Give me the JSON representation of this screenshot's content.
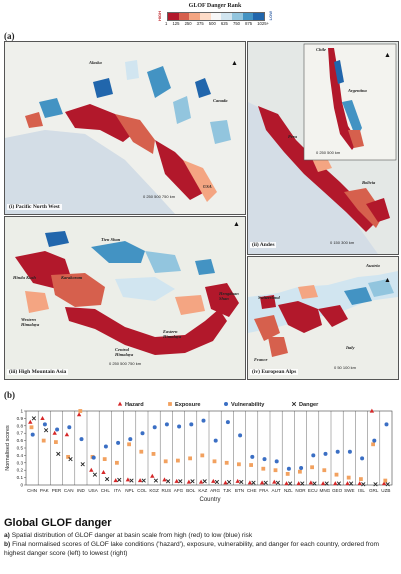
{
  "figure": {
    "panel_a": "(a)",
    "panel_b": "(b)"
  },
  "legend": {
    "title": "GLOF Danger Rank",
    "high": "HIGH",
    "low": "LOW",
    "ticks": [
      "1",
      "125",
      "250",
      "375",
      "500",
      "625",
      "750",
      "875",
      "1025+"
    ],
    "colors": [
      "#b2182b",
      "#d6604d",
      "#f4a582",
      "#fddbc7",
      "#f7f7f7",
      "#d1e5f0",
      "#92c5de",
      "#4393c3",
      "#2166ac"
    ]
  },
  "maps": {
    "pnw": {
      "caption": "(i) Pacific North West",
      "labels": {
        "alaska": "Alaska",
        "canada": "Canada",
        "usa": "USA"
      },
      "scale": "0   250  500  750 km"
    },
    "andes": {
      "caption": "(ii) Andes",
      "labels": {
        "chile": "Chile",
        "argentina": "Argentina",
        "peru": "Peru",
        "bolivia": "Bolivia"
      },
      "scale_inset": "0   250  500 km",
      "scale": "0    150   300 km"
    },
    "hma": {
      "caption": "(iii) High Mountain Asia",
      "labels": {
        "tien_shan": "Tien Shan",
        "hindu_kush": "Hindu Kush",
        "karakoram": "Karakoram",
        "western_himalaya": "Western Himalaya",
        "central_himalaya": "Central Himalaya",
        "eastern_himalaya": "Eastern Himalaya",
        "hengduan_shan": "Hengduan Shan"
      },
      "scale": "0    250   500    750 km"
    },
    "alps": {
      "caption": "(iv) European Alps",
      "labels": {
        "austria": "Austria",
        "switzerland": "Switzerland",
        "italy": "Italy",
        "france": "France"
      },
      "scale": "0     50    100 km"
    }
  },
  "chart_data": {
    "type": "scatter",
    "title": "",
    "xlabel": "Country",
    "ylabel": "Normalised scores",
    "ylim": [
      0,
      1
    ],
    "yticks": [
      "0",
      "0.1",
      "0.2",
      "0.3",
      "0.4",
      "0.5",
      "0.6",
      "0.7",
      "0.8",
      "0.9",
      "1"
    ],
    "legend_position": "top",
    "categories": [
      "CHN",
      "PAK",
      "PER",
      "CAN",
      "IND",
      "USA",
      "CHL",
      "ITA",
      "NPL",
      "COL",
      "KGZ",
      "RUS",
      "AFG",
      "BOL",
      "KAZ",
      "ARG",
      "TJK",
      "BTN",
      "CHE",
      "FRA",
      "AUT",
      "NZL",
      "NOR",
      "ECU",
      "MNG",
      "GEO",
      "SWE",
      "ISL",
      "GRL",
      "UZB"
    ],
    "series": [
      {
        "name": "Hazard",
        "marker": "triangle",
        "color": "#d62728",
        "values": [
          0.85,
          0.9,
          0.7,
          0.68,
          0.95,
          0.2,
          0.17,
          0.06,
          0.07,
          0.06,
          0.12,
          0.07,
          0.05,
          0.04,
          0.04,
          0.05,
          0.03,
          0.05,
          0.03,
          0.03,
          0.04,
          0.02,
          0.02,
          0.03,
          0.02,
          0.02,
          0.02,
          0.02,
          1.0,
          0.02
        ]
      },
      {
        "name": "Exposure",
        "marker": "square",
        "color": "#f2a15f",
        "values": [
          0.78,
          0.6,
          0.58,
          0.38,
          1.0,
          0.38,
          0.35,
          0.3,
          0.55,
          0.45,
          0.42,
          0.32,
          0.33,
          0.36,
          0.4,
          0.32,
          0.3,
          0.28,
          0.27,
          0.22,
          0.2,
          0.15,
          0.18,
          0.24,
          0.2,
          0.14,
          0.1,
          0.08,
          0.55,
          0.06
        ]
      },
      {
        "name": "Vulnerability",
        "marker": "circle",
        "color": "#3b6fc4",
        "values": [
          0.68,
          0.82,
          0.75,
          0.78,
          0.62,
          0.37,
          0.52,
          0.57,
          0.62,
          0.7,
          0.78,
          0.82,
          0.79,
          0.82,
          0.87,
          0.6,
          0.85,
          0.67,
          0.38,
          0.35,
          0.32,
          0.22,
          0.23,
          0.4,
          0.42,
          0.45,
          0.45,
          0.36,
          0.6,
          0.82
        ]
      },
      {
        "name": "Danger",
        "marker": "x",
        "color": "#222222",
        "values": [
          0.9,
          0.74,
          0.42,
          0.35,
          0.28,
          0.14,
          0.08,
          0.07,
          0.06,
          0.06,
          0.06,
          0.05,
          0.05,
          0.05,
          0.05,
          0.04,
          0.04,
          0.04,
          0.03,
          0.03,
          0.03,
          0.02,
          0.02,
          0.02,
          0.02,
          0.02,
          0.02,
          0.01,
          0.01,
          0.01
        ]
      }
    ]
  },
  "caption": {
    "title": "Global GLOF danger",
    "line_a_label": "a)",
    "line_a": "Spatial distribution of GLOF danger at basin scale from high (red) to low (blue) risk",
    "line_b_label": "b)",
    "line_b": "Final normalised scores of GLOF lake conditions ('hazard'), exposure, vulnerability, and danger for each country, ordered from highest danger score (left) to lowest (right)"
  }
}
